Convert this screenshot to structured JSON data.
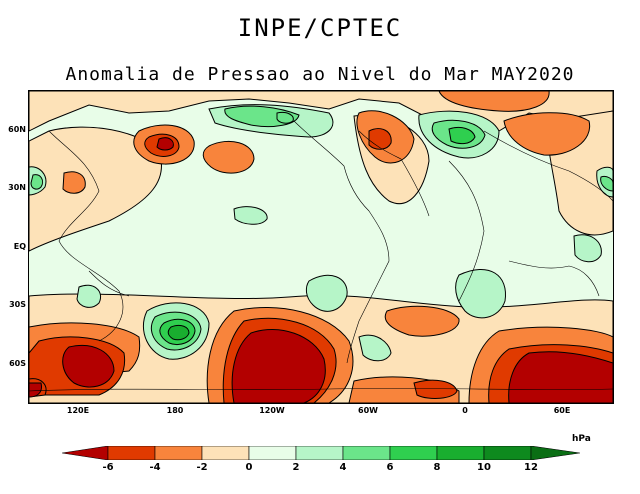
{
  "header": {
    "agency": "INPE/CPTEC",
    "title": "Anomalia de Pressao ao Nivel do Mar MAY2020"
  },
  "axes": {
    "lat_labels": [
      "60N",
      "30N",
      "EQ",
      "30S",
      "60S"
    ],
    "lon_labels": [
      "120E",
      "180",
      "120W",
      "60W",
      "0",
      "60E"
    ]
  },
  "legend": {
    "unit": "hPa",
    "ticks": [
      "-6",
      "-4",
      "-2",
      "0",
      "2",
      "4",
      "6",
      "8",
      "10",
      "12"
    ],
    "colors": {
      "lt_-6": "#b30000",
      "-6_-4": "#e03a00",
      "-4_-2": "#f8843c",
      "-2_0": "#fde2b8",
      "0_2": "#e8fde8",
      "2_4": "#b6f5c8",
      "4_6": "#6be58a",
      "6_8": "#2fcf4f",
      "8_10": "#19ae2f",
      "10_12": "#0e8a1e",
      "gt_12": "#0a6e14"
    }
  }
}
